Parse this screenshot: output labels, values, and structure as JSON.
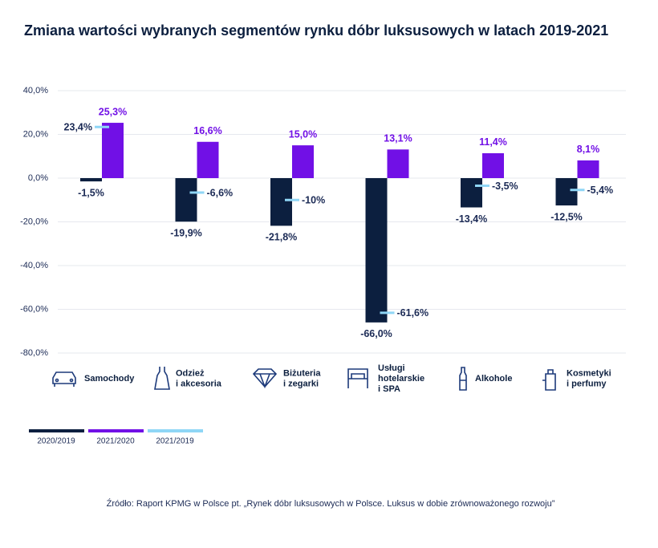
{
  "chart_data": {
    "type": "bar",
    "title": "Zmiana wartości wybranych segmentów rynku dóbr luksusowych w latach 2019-2021",
    "categories": [
      "Samochody",
      "Odzież\ni akcesoria",
      "Biżuteria\ni zegarki",
      "Usługi\nhotelarskie\ni SPA",
      "Alkohole",
      "Kosmetyki\ni perfumy"
    ],
    "series": [
      {
        "name": "2020/2019",
        "color": "#0c1f3f",
        "values": [
          -1.5,
          -19.9,
          -21.8,
          -66.0,
          -13.4,
          -12.5
        ],
        "value_labels": [
          "-1,5%",
          "-19,9%",
          "-21,8%",
          "-66,0%",
          "-13,4%",
          "-12,5%"
        ]
      },
      {
        "name": "2021/2020",
        "color": "#7110e6",
        "values": [
          25.3,
          16.6,
          15.0,
          13.1,
          11.4,
          8.1
        ],
        "value_labels": [
          "25,3%",
          "16,6%",
          "15,0%",
          "13,1%",
          "11,4%",
          "8,1%"
        ]
      },
      {
        "name": "2021/2019",
        "color": "#8fd6f6",
        "marker": "dash",
        "values": [
          23.4,
          -6.6,
          -10,
          -61.6,
          -3.5,
          -5.4
        ],
        "value_labels": [
          "23,4%",
          "-6,6%",
          "-10%",
          "-61,6%",
          "-3,5%",
          "-5,4%"
        ]
      }
    ],
    "ylim": [
      -80,
      40
    ],
    "yticks": [
      {
        "value": -80,
        "label": "-80,0%"
      },
      {
        "value": -60,
        "label": "-60,0%"
      },
      {
        "value": -40,
        "label": "-40,0%"
      },
      {
        "value": -20,
        "label": "-20,0%"
      },
      {
        "value": 0,
        "label": "0,0%"
      },
      {
        "value": 20,
        "label": "20,0%"
      },
      {
        "value": 40,
        "label": "40,0%"
      }
    ],
    "grid": true,
    "source": "Źródło: Raport KPMG w Polsce pt. „Rynek dóbr luksusowych w Polsce. Luksus w dobie zrównoważonego rozwoju”"
  }
}
